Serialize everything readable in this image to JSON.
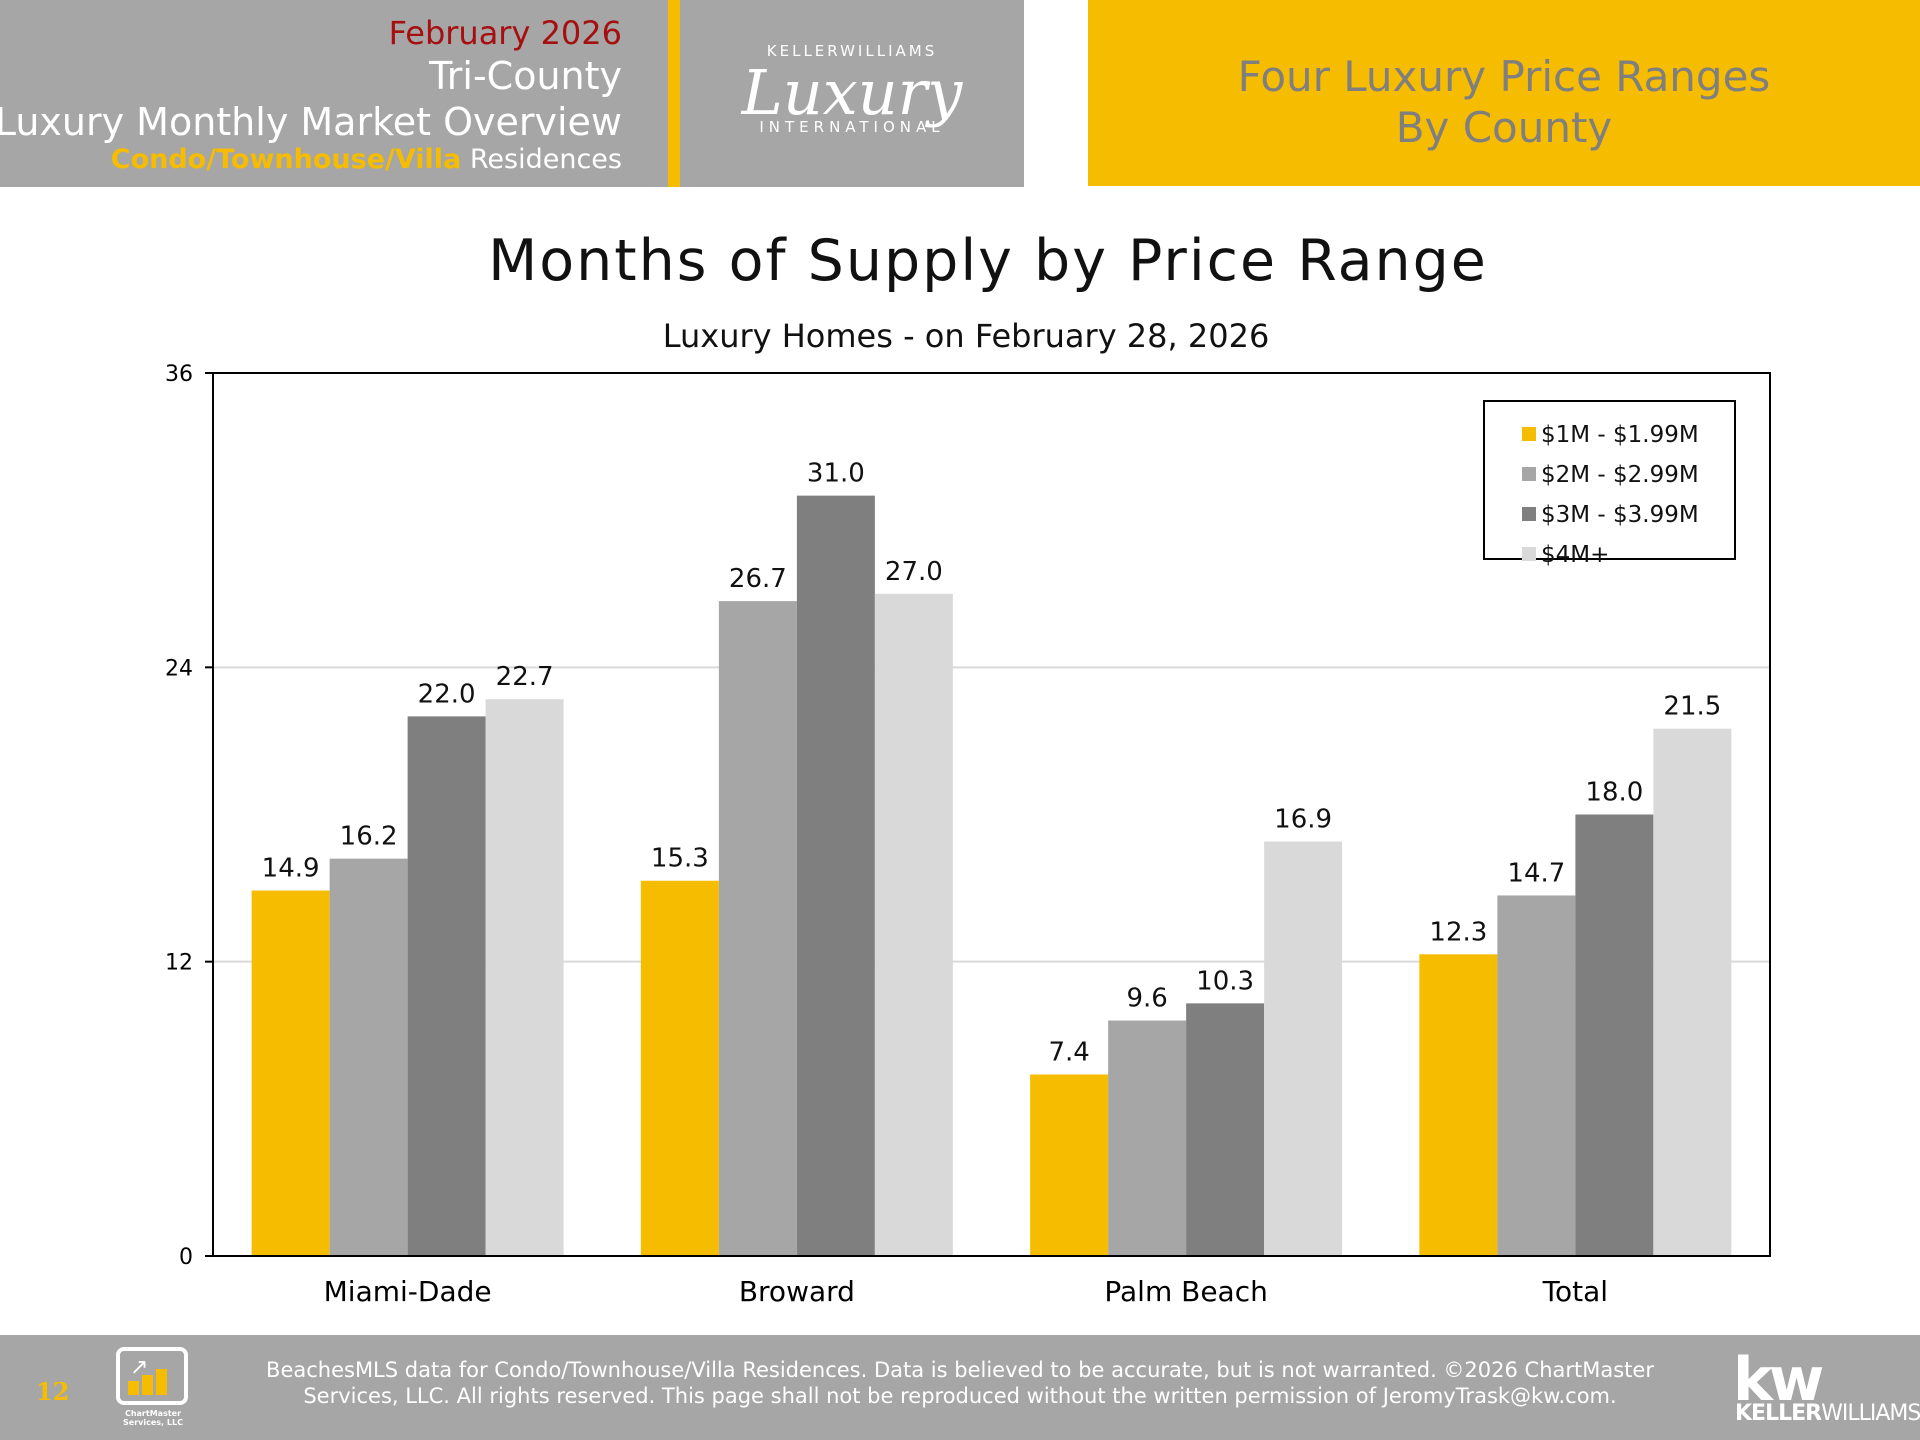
{
  "header": {
    "date": "February 2026",
    "region": "Tri-County",
    "report_title": "Luxury Monthly Market Overview",
    "property_type": "Condo/Townhouse/Villa",
    "property_suffix": "Residences",
    "brand_top": "KELLERWILLIAMS",
    "brand_script": "Luxury",
    "brand_bottom": "INTERNATIONAL",
    "panel_title_line1": "Four Luxury Price Ranges",
    "panel_title_line2": "By County"
  },
  "colors": {
    "gold": "#f5bc00",
    "header_gray": "#a6a6a6",
    "date_red": "#a50f0f",
    "panel_text": "#7f7f7f"
  },
  "chart_data": {
    "type": "bar",
    "title": "Months of Supply by Price Range",
    "subtitle": "Luxury Homes - on February 28, 2026",
    "categories": [
      "Miami-Dade",
      "Broward",
      "Palm Beach",
      "Total"
    ],
    "series": [
      {
        "name": "$1M - $1.99M",
        "color": "#f5bc00",
        "values": [
          14.9,
          15.3,
          7.4,
          12.3
        ]
      },
      {
        "name": "$2M - $2.99M",
        "color": "#a6a6a6",
        "values": [
          16.2,
          26.7,
          9.6,
          14.7
        ]
      },
      {
        "name": "$3M - $3.99M",
        "color": "#7f7f7f",
        "values": [
          22.0,
          31.0,
          10.3,
          18.0
        ]
      },
      {
        "name": "$4M+",
        "color": "#d9d9d9",
        "values": [
          22.7,
          27.0,
          16.9,
          21.5
        ]
      }
    ],
    "ylim": [
      0,
      36
    ],
    "yticks": [
      0,
      12,
      24,
      36
    ],
    "grid": true,
    "legend": "top-right",
    "xlabel": "",
    "ylabel": ""
  },
  "footer": {
    "page_number": "12",
    "logo_text_line1": "ChartMaster",
    "logo_text_line2": "Services, LLC",
    "disclaimer_line1": "BeachesMLS data for Condo/Townhouse/Villa Residences.  Data is believed to be accurate, but is not warranted.   ©2026  ChartMaster",
    "disclaimer_line2": "Services, LLC.  All rights reserved. This page shall not be reproduced without the written permission of JeromyTrask@kw.com.",
    "kw_mark": "kw",
    "kw_name_bold": "KELLER",
    "kw_name_rest": "WILLIAMS."
  }
}
